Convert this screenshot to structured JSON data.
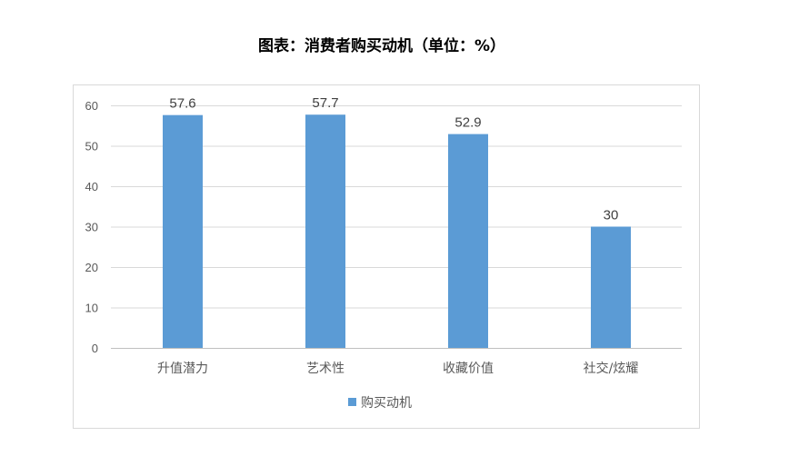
{
  "chart_data": {
    "type": "bar",
    "title": "图表：消费者购买动机（单位：%）",
    "categories": [
      "升值潜力",
      "艺术性",
      "收藏价值",
      "社交/炫耀"
    ],
    "series": [
      {
        "name": "购买动机",
        "values": [
          57.6,
          57.7,
          52.9,
          30
        ],
        "color": "#5B9BD5"
      }
    ],
    "ylim": [
      0,
      60
    ],
    "yticks": [
      0,
      10,
      20,
      30,
      40,
      50,
      60
    ],
    "grid": true,
    "legend": "bottom",
    "data_labels": [
      "57.6",
      "57.7",
      "52.9",
      "30"
    ]
  }
}
